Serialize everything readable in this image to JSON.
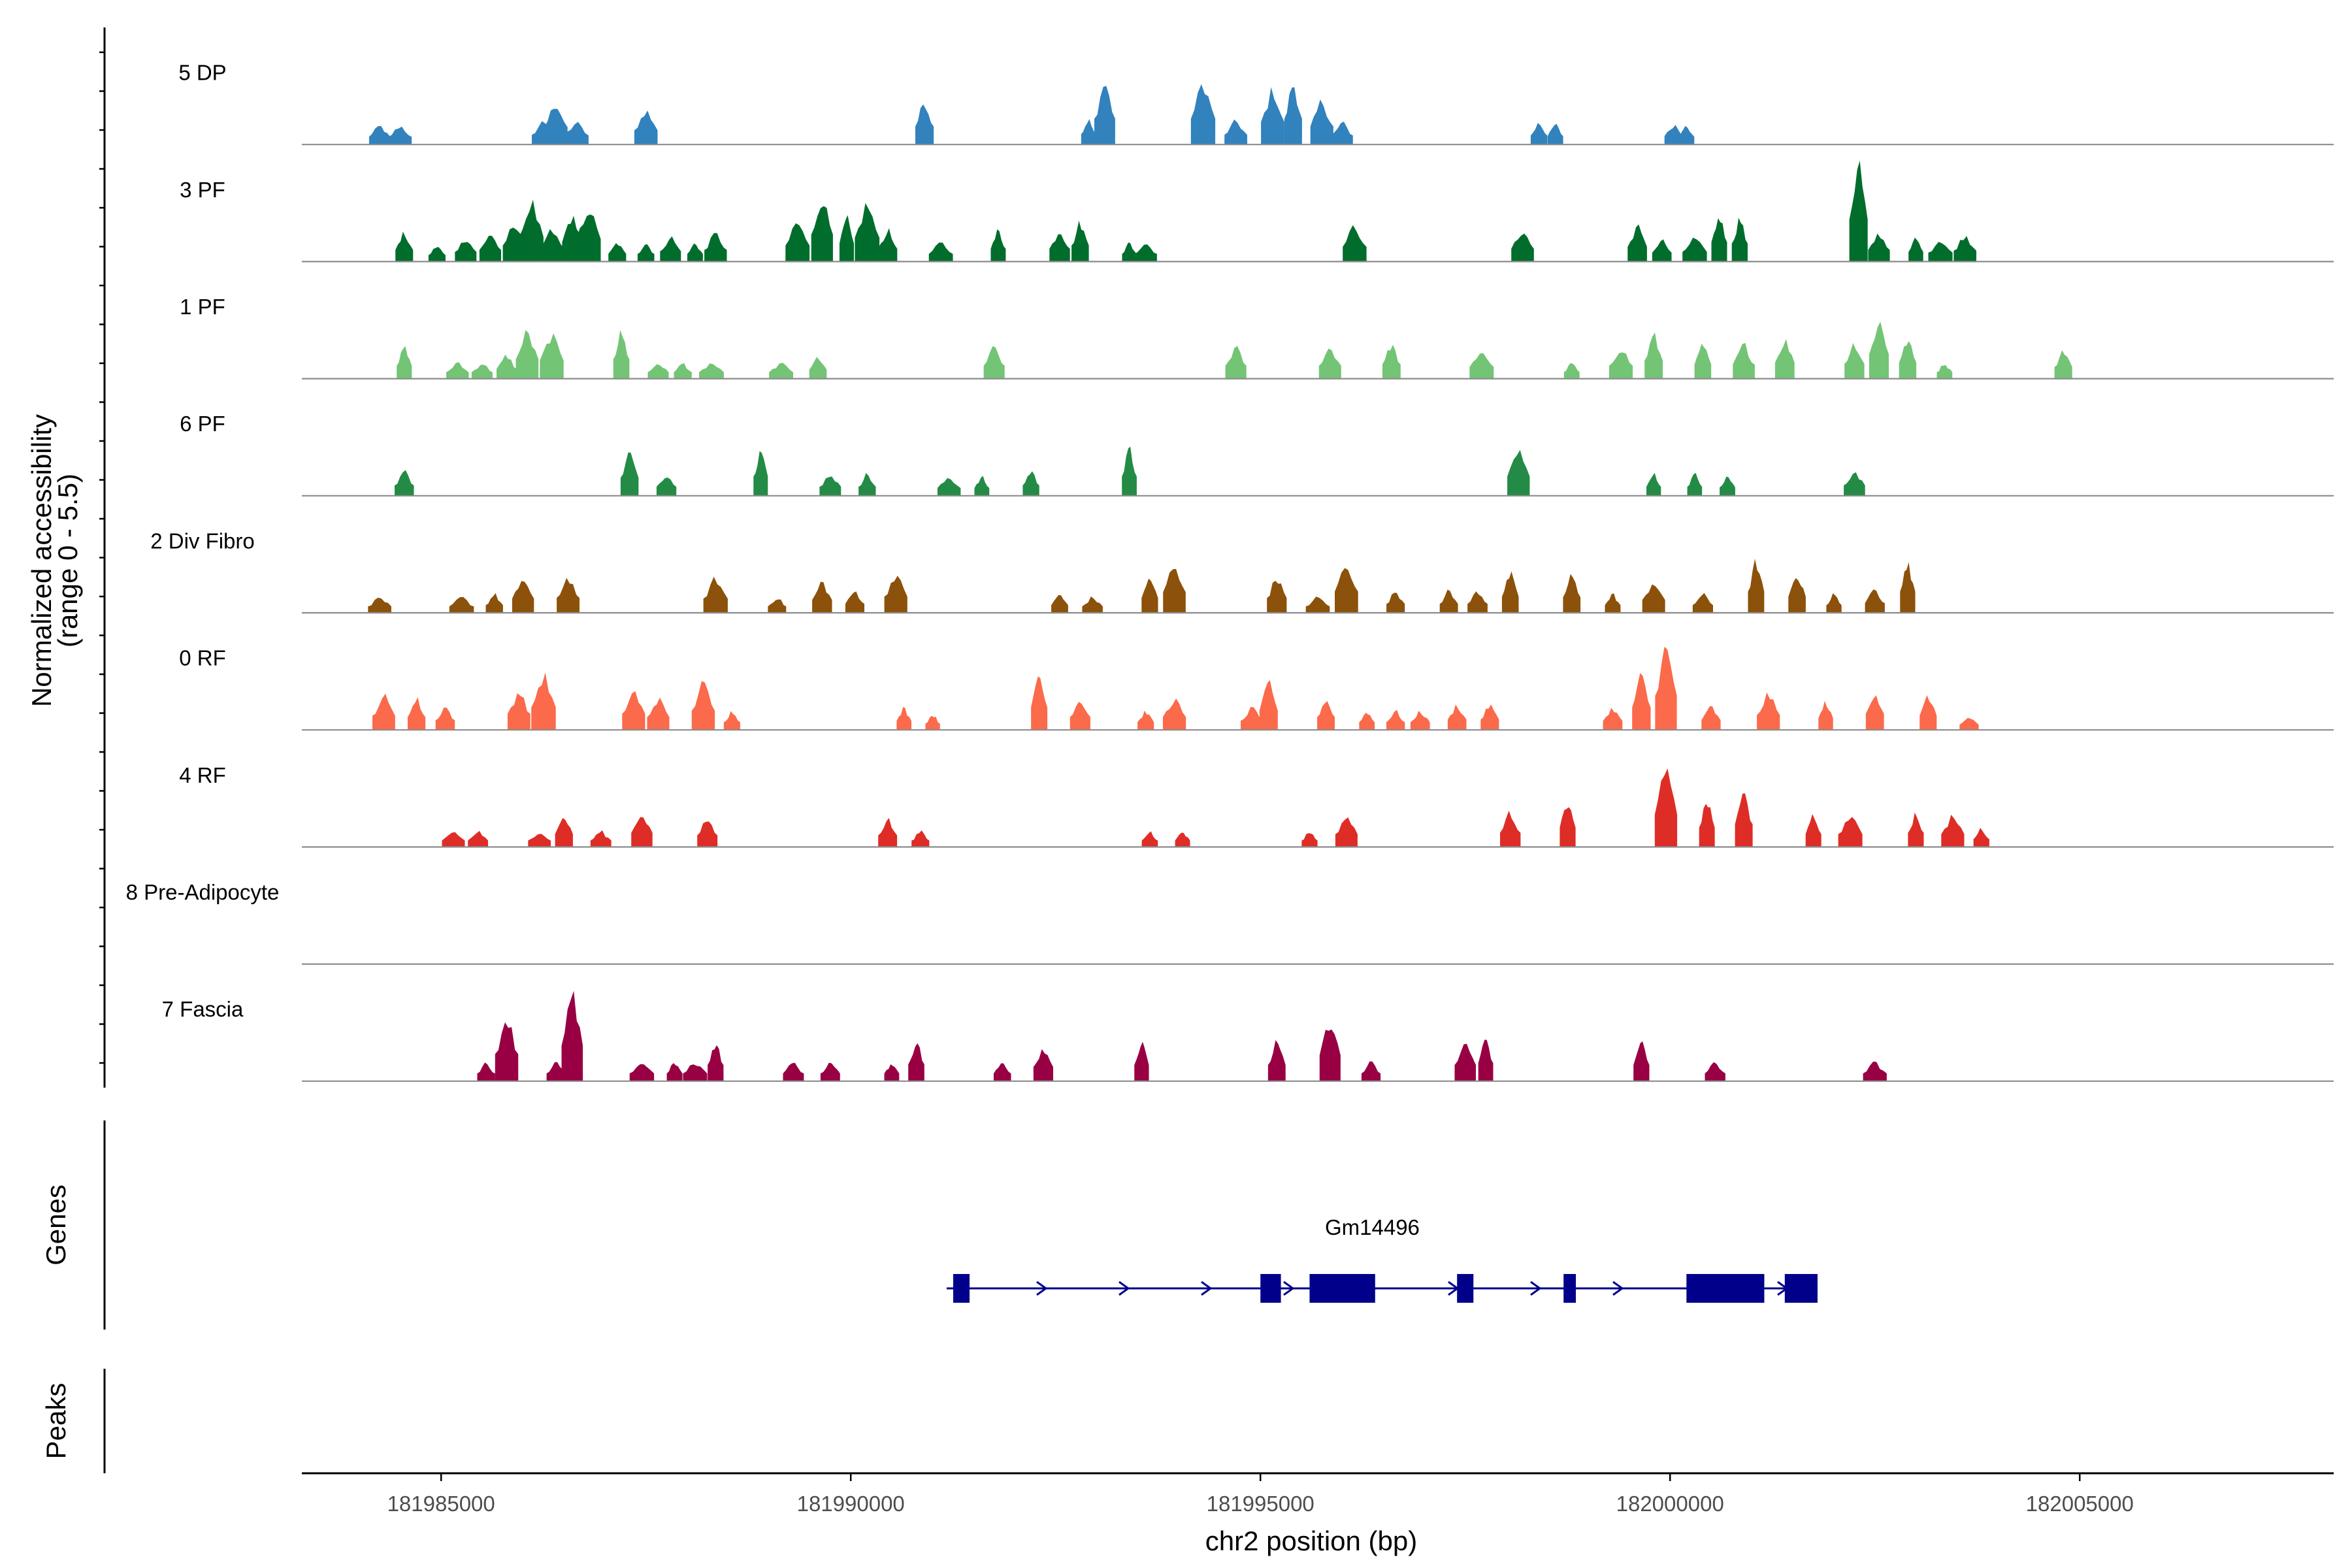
{
  "chart_data": {
    "type": "area",
    "title": "",
    "ylabel_line1": "Normalized accessibility",
    "ylabel_line2": "(range 0 - 5.5)",
    "y_range": [
      0,
      5.5
    ],
    "xlabel": "chr2 position (bp)",
    "xlim": [
      181983300,
      182008100
    ],
    "x_ticks": [
      181985000,
      181990000,
      181995000,
      182000000,
      182005000
    ],
    "x_tick_labels": [
      "181985000",
      "181990000",
      "181995000",
      "182000000",
      "182005000"
    ],
    "tracks": [
      {
        "name": "5 DP",
        "color": "#3182bd",
        "peaks": [
          [
            181984250,
            1.2
          ],
          [
            181984500,
            1.2
          ],
          [
            181986250,
            1.5
          ],
          [
            181986400,
            2.7
          ],
          [
            181986650,
            1.4
          ],
          [
            181987500,
            2.2
          ],
          [
            181990900,
            2.8
          ],
          [
            181992900,
            1.6
          ],
          [
            181993100,
            4.0
          ],
          [
            181994300,
            4.0
          ],
          [
            181994700,
            1.5
          ],
          [
            181995150,
            3.5
          ],
          [
            181995400,
            4.0
          ],
          [
            181995750,
            2.8
          ],
          [
            181996000,
            1.4
          ],
          [
            181998400,
            1.4
          ],
          [
            181998600,
            1.3
          ],
          [
            182000050,
            1.3
          ],
          [
            182000200,
            1.2
          ]
        ]
      },
      {
        "name": "3 PF",
        "color": "#006d2c",
        "peaks": [
          [
            181984550,
            1.8
          ],
          [
            181984950,
            1.0
          ],
          [
            181985300,
            1.5
          ],
          [
            181985600,
            1.8
          ],
          [
            181985900,
            2.5
          ],
          [
            181986100,
            3.8
          ],
          [
            181986350,
            2.0
          ],
          [
            181986600,
            3.0
          ],
          [
            181986800,
            3.5
          ],
          [
            181987150,
            1.2
          ],
          [
            181987500,
            1.2
          ],
          [
            181987800,
            1.6
          ],
          [
            181988100,
            1.2
          ],
          [
            181988350,
            1.8
          ],
          [
            181989350,
            2.5
          ],
          [
            181989650,
            4.2
          ],
          [
            181989950,
            2.8
          ],
          [
            181990200,
            3.7
          ],
          [
            181990450,
            2.0
          ],
          [
            181991100,
            1.2
          ],
          [
            181991800,
            2.0
          ],
          [
            181992550,
            2.0
          ],
          [
            181992800,
            2.5
          ],
          [
            181993400,
            1.2
          ],
          [
            181993600,
            1.2
          ],
          [
            181996150,
            2.3
          ],
          [
            181998200,
            2.0
          ],
          [
            181999600,
            2.3
          ],
          [
            181999900,
            1.4
          ],
          [
            182000300,
            1.5
          ],
          [
            182000600,
            3.0
          ],
          [
            182000850,
            2.8
          ],
          [
            182002300,
            6.5
          ],
          [
            182002550,
            1.8
          ],
          [
            182003000,
            1.5
          ],
          [
            182003300,
            1.4
          ],
          [
            182003600,
            1.7
          ]
        ]
      },
      {
        "name": "1 PF",
        "color": "#74c476",
        "peaks": [
          [
            181984550,
            2.0
          ],
          [
            181985200,
            1.0
          ],
          [
            181985500,
            1.0
          ],
          [
            181985800,
            1.5
          ],
          [
            181986050,
            3.0
          ],
          [
            181986350,
            2.8
          ],
          [
            181987200,
            3.0
          ],
          [
            181987650,
            1.0
          ],
          [
            181987950,
            1.0
          ],
          [
            181988300,
            1.0
          ],
          [
            181989150,
            1.0
          ],
          [
            181989600,
            1.4
          ],
          [
            181991750,
            2.0
          ],
          [
            181994700,
            2.0
          ],
          [
            181995850,
            2.0
          ],
          [
            181996600,
            2.2
          ],
          [
            181997700,
            1.8
          ],
          [
            181998800,
            1.0
          ],
          [
            181999400,
            2.0
          ],
          [
            181999800,
            2.8
          ],
          [
            182000400,
            2.2
          ],
          [
            182000900,
            2.2
          ],
          [
            182001400,
            2.5
          ],
          [
            182002250,
            2.3
          ],
          [
            182002550,
            3.8
          ],
          [
            182002900,
            2.5
          ],
          [
            182003350,
            1.0
          ],
          [
            182004800,
            1.8
          ]
        ]
      },
      {
        "name": "6 PF",
        "color": "#238b45",
        "peaks": [
          [
            181984550,
            1.6
          ],
          [
            181987300,
            2.8
          ],
          [
            181987750,
            1.4
          ],
          [
            181988900,
            3.0
          ],
          [
            181989750,
            1.4
          ],
          [
            181990200,
            1.4
          ],
          [
            181991200,
            1.2
          ],
          [
            181991600,
            1.2
          ],
          [
            181992200,
            1.6
          ],
          [
            181993400,
            3.0
          ],
          [
            181998150,
            3.0
          ],
          [
            181999800,
            1.4
          ],
          [
            182000300,
            1.4
          ],
          [
            182000700,
            1.3
          ],
          [
            182002250,
            1.6
          ]
        ]
      },
      {
        "name": "2 Div Fibro",
        "color": "#8c510a",
        "peaks": [
          [
            181984250,
            1.0
          ],
          [
            181985250,
            1.0
          ],
          [
            181985650,
            1.2
          ],
          [
            181986000,
            2.2
          ],
          [
            181986550,
            2.3
          ],
          [
            181988350,
            2.2
          ],
          [
            181989100,
            1.0
          ],
          [
            181989650,
            2.0
          ],
          [
            181990050,
            1.4
          ],
          [
            181990550,
            2.5
          ],
          [
            181992550,
            1.2
          ],
          [
            181992950,
            1.0
          ],
          [
            181993650,
            2.3
          ],
          [
            181993950,
            3.2
          ],
          [
            181995200,
            2.3
          ],
          [
            181995700,
            1.0
          ],
          [
            181996050,
            3.3
          ],
          [
            181996650,
            1.4
          ],
          [
            181997300,
            1.4
          ],
          [
            181997650,
            1.4
          ],
          [
            181998050,
            2.5
          ],
          [
            181998800,
            2.4
          ],
          [
            181999300,
            1.2
          ],
          [
            181999800,
            2.0
          ],
          [
            182000400,
            1.2
          ],
          [
            182001050,
            3.3
          ],
          [
            182001550,
            2.5
          ],
          [
            182002000,
            1.2
          ],
          [
            182002500,
            1.5
          ],
          [
            182002900,
            3.3
          ]
        ]
      },
      {
        "name": "0 RF",
        "color": "#fb6a4a",
        "peaks": [
          [
            181984300,
            2.2
          ],
          [
            181984700,
            2.0
          ],
          [
            181985050,
            1.5
          ],
          [
            181985950,
            2.5
          ],
          [
            181986250,
            3.5
          ],
          [
            181987350,
            2.5
          ],
          [
            181987650,
            2.0
          ],
          [
            181988200,
            3.0
          ],
          [
            181988550,
            1.2
          ],
          [
            181990650,
            1.4
          ],
          [
            181991000,
            1.0
          ],
          [
            181992300,
            3.5
          ],
          [
            181992800,
            2.0
          ],
          [
            181993600,
            1.2
          ],
          [
            181993950,
            2.0
          ],
          [
            181994900,
            1.4
          ],
          [
            181995100,
            3.0
          ],
          [
            181995800,
            2.0
          ],
          [
            181996300,
            1.2
          ],
          [
            181996650,
            1.2
          ],
          [
            181996950,
            1.2
          ],
          [
            181997400,
            1.6
          ],
          [
            181997800,
            1.6
          ],
          [
            181999300,
            1.4
          ],
          [
            181999650,
            3.5
          ],
          [
            181999950,
            5.3
          ],
          [
            182000500,
            1.5
          ],
          [
            182001200,
            2.3
          ],
          [
            182001900,
            1.8
          ],
          [
            182002500,
            2.5
          ],
          [
            182003150,
            2.2
          ],
          [
            182003650,
            0.8
          ]
        ]
      },
      {
        "name": "4 RF",
        "color": "#de2d26",
        "peaks": [
          [
            181985150,
            1.0
          ],
          [
            181985450,
            1.0
          ],
          [
            181986200,
            1.0
          ],
          [
            181986500,
            2.0
          ],
          [
            181986950,
            1.0
          ],
          [
            181987450,
            2.2
          ],
          [
            181988250,
            1.8
          ],
          [
            181990450,
            1.8
          ],
          [
            181990850,
            1.0
          ],
          [
            181993650,
            1.0
          ],
          [
            181994050,
            1.0
          ],
          [
            181995600,
            1.0
          ],
          [
            181996050,
            2.0
          ],
          [
            181998050,
            2.2
          ],
          [
            181998750,
            3.0
          ],
          [
            181999950,
            5.0
          ],
          [
            182000450,
            3.0
          ],
          [
            182000900,
            3.5
          ],
          [
            182001750,
            2.0
          ],
          [
            182002200,
            2.0
          ],
          [
            182003000,
            2.2
          ],
          [
            182003450,
            2.0
          ],
          [
            182003800,
            1.2
          ]
        ]
      },
      {
        "name": "8 Pre-Adipocyte",
        "color": "#7a0177",
        "peaks": []
      },
      {
        "name": "7 Fascia",
        "color": "#980043",
        "peaks": [
          [
            181985550,
            1.2
          ],
          [
            181985800,
            4.2
          ],
          [
            181986400,
            1.2
          ],
          [
            181986600,
            5.5
          ],
          [
            181987450,
            1.2
          ],
          [
            181987850,
            1.2
          ],
          [
            181988100,
            1.2
          ],
          [
            181988350,
            2.5
          ],
          [
            181989300,
            1.2
          ],
          [
            181989750,
            1.2
          ],
          [
            181990500,
            1.2
          ],
          [
            181990800,
            2.6
          ],
          [
            181991850,
            1.2
          ],
          [
            181992350,
            2.2
          ],
          [
            181993550,
            2.5
          ],
          [
            181995200,
            2.5
          ],
          [
            181995850,
            4.0
          ],
          [
            181996350,
            1.2
          ],
          [
            181997500,
            2.5
          ],
          [
            181997750,
            2.8
          ],
          [
            181999650,
            2.5
          ],
          [
            182000550,
            1.2
          ],
          [
            182002500,
            1.2
          ]
        ]
      }
    ],
    "genes_label": "Genes",
    "gene": {
      "name": "Gm14496",
      "start": 181991250,
      "end": 182001800,
      "strand": "+",
      "exons": [
        [
          181991250,
          181991450
        ],
        [
          181995000,
          181995250
        ],
        [
          181995600,
          181996400
        ],
        [
          181997400,
          181997600
        ],
        [
          181998700,
          181998850
        ],
        [
          182000200,
          182001150
        ],
        [
          182001400,
          182001800
        ]
      ]
    },
    "peaks_label": "Peaks"
  }
}
